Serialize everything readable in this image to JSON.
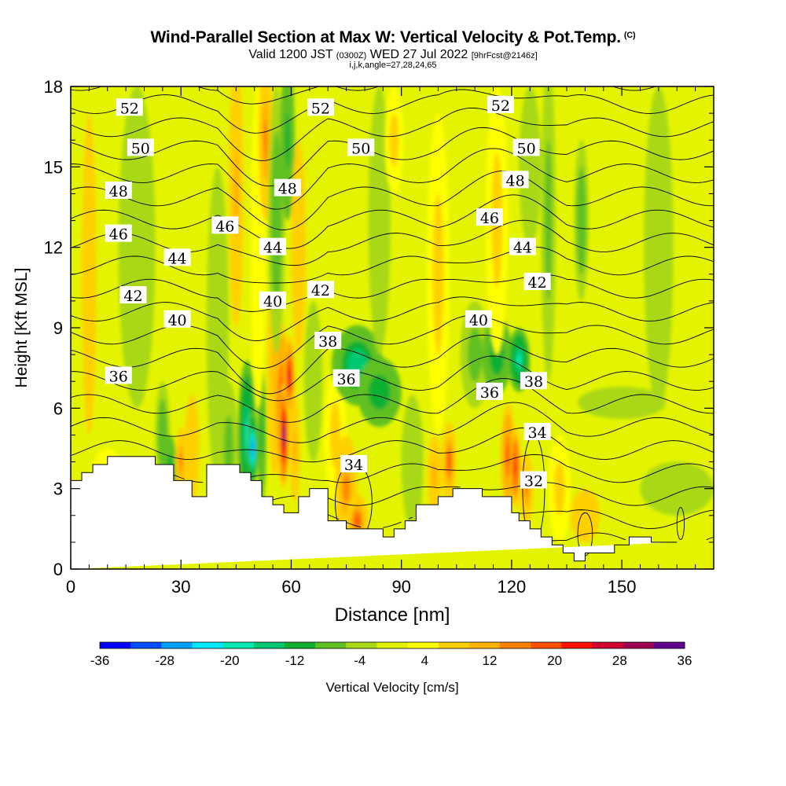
{
  "header": {
    "title": "Wind-Parallel Section at Max W: Vertical Velocity & Pot.Temp.",
    "copyright": "(C)",
    "valid_prefix": "Valid 1200 JST",
    "valid_utc": "(0300Z)",
    "valid_date": "WED 27 Jul 2022",
    "forecast": "[9hrFcst@2146z]",
    "indices": "i,j,k,angle=27,28,24,65"
  },
  "chart_data": {
    "type": "heatmap",
    "xlabel": "Distance [nm]",
    "ylabel": "Height [Kft MSL]",
    "xlim": [
      0,
      175
    ],
    "ylim": [
      0,
      18
    ],
    "x_ticks": [
      "0",
      "30",
      "60",
      "90",
      "120",
      "150"
    ],
    "y_ticks": [
      "0",
      "3",
      "6",
      "9",
      "12",
      "15",
      "18"
    ],
    "grid": false,
    "colorbar": {
      "label": "Vertical Velocity [cm/s]",
      "ticks": [
        "-36",
        "-28",
        "-20",
        "-12",
        "-4",
        "4",
        "12",
        "20",
        "28",
        "36"
      ],
      "range": [
        -36,
        36
      ],
      "colors": [
        "#0000ff",
        "#0050ff",
        "#00a0ff",
        "#00e8ff",
        "#00e8b0",
        "#00c870",
        "#10b030",
        "#60c020",
        "#a8d818",
        "#e0f000",
        "#ffff00",
        "#ffd000",
        "#ffb000",
        "#ff8000",
        "#ff5000",
        "#ff1000",
        "#d00030",
        "#a00050",
        "#600090"
      ]
    },
    "theta_contour_labels": [
      {
        "value": "52",
        "x": 16,
        "y": 17.2
      },
      {
        "value": "52",
        "x": 68,
        "y": 17.2
      },
      {
        "value": "52",
        "x": 117,
        "y": 17.3
      },
      {
        "value": "50",
        "x": 19,
        "y": 15.7
      },
      {
        "value": "50",
        "x": 79,
        "y": 15.7
      },
      {
        "value": "50",
        "x": 124,
        "y": 15.7
      },
      {
        "value": "48",
        "x": 13,
        "y": 14.1
      },
      {
        "value": "48",
        "x": 59,
        "y": 14.2
      },
      {
        "value": "48",
        "x": 121,
        "y": 14.5
      },
      {
        "value": "46",
        "x": 13,
        "y": 12.5
      },
      {
        "value": "46",
        "x": 42,
        "y": 12.8
      },
      {
        "value": "46",
        "x": 114,
        "y": 13.1
      },
      {
        "value": "44",
        "x": 29,
        "y": 11.6
      },
      {
        "value": "44",
        "x": 55,
        "y": 12.0
      },
      {
        "value": "44",
        "x": 123,
        "y": 12.0
      },
      {
        "value": "42",
        "x": 17,
        "y": 10.2
      },
      {
        "value": "42",
        "x": 68,
        "y": 10.4
      },
      {
        "value": "42",
        "x": 127,
        "y": 10.7
      },
      {
        "value": "40",
        "x": 29,
        "y": 9.3
      },
      {
        "value": "40",
        "x": 55,
        "y": 10.0
      },
      {
        "value": "40",
        "x": 111,
        "y": 9.3
      },
      {
        "value": "38",
        "x": 70,
        "y": 8.5
      },
      {
        "value": "38",
        "x": 126,
        "y": 7.0
      },
      {
        "value": "36",
        "x": 13,
        "y": 7.2
      },
      {
        "value": "36",
        "x": 75,
        "y": 7.1
      },
      {
        "value": "36",
        "x": 114,
        "y": 6.6
      },
      {
        "value": "34",
        "x": 77,
        "y": 3.9
      },
      {
        "value": "34",
        "x": 127,
        "y": 5.1
      },
      {
        "value": "32",
        "x": 126,
        "y": 3.3
      }
    ]
  }
}
